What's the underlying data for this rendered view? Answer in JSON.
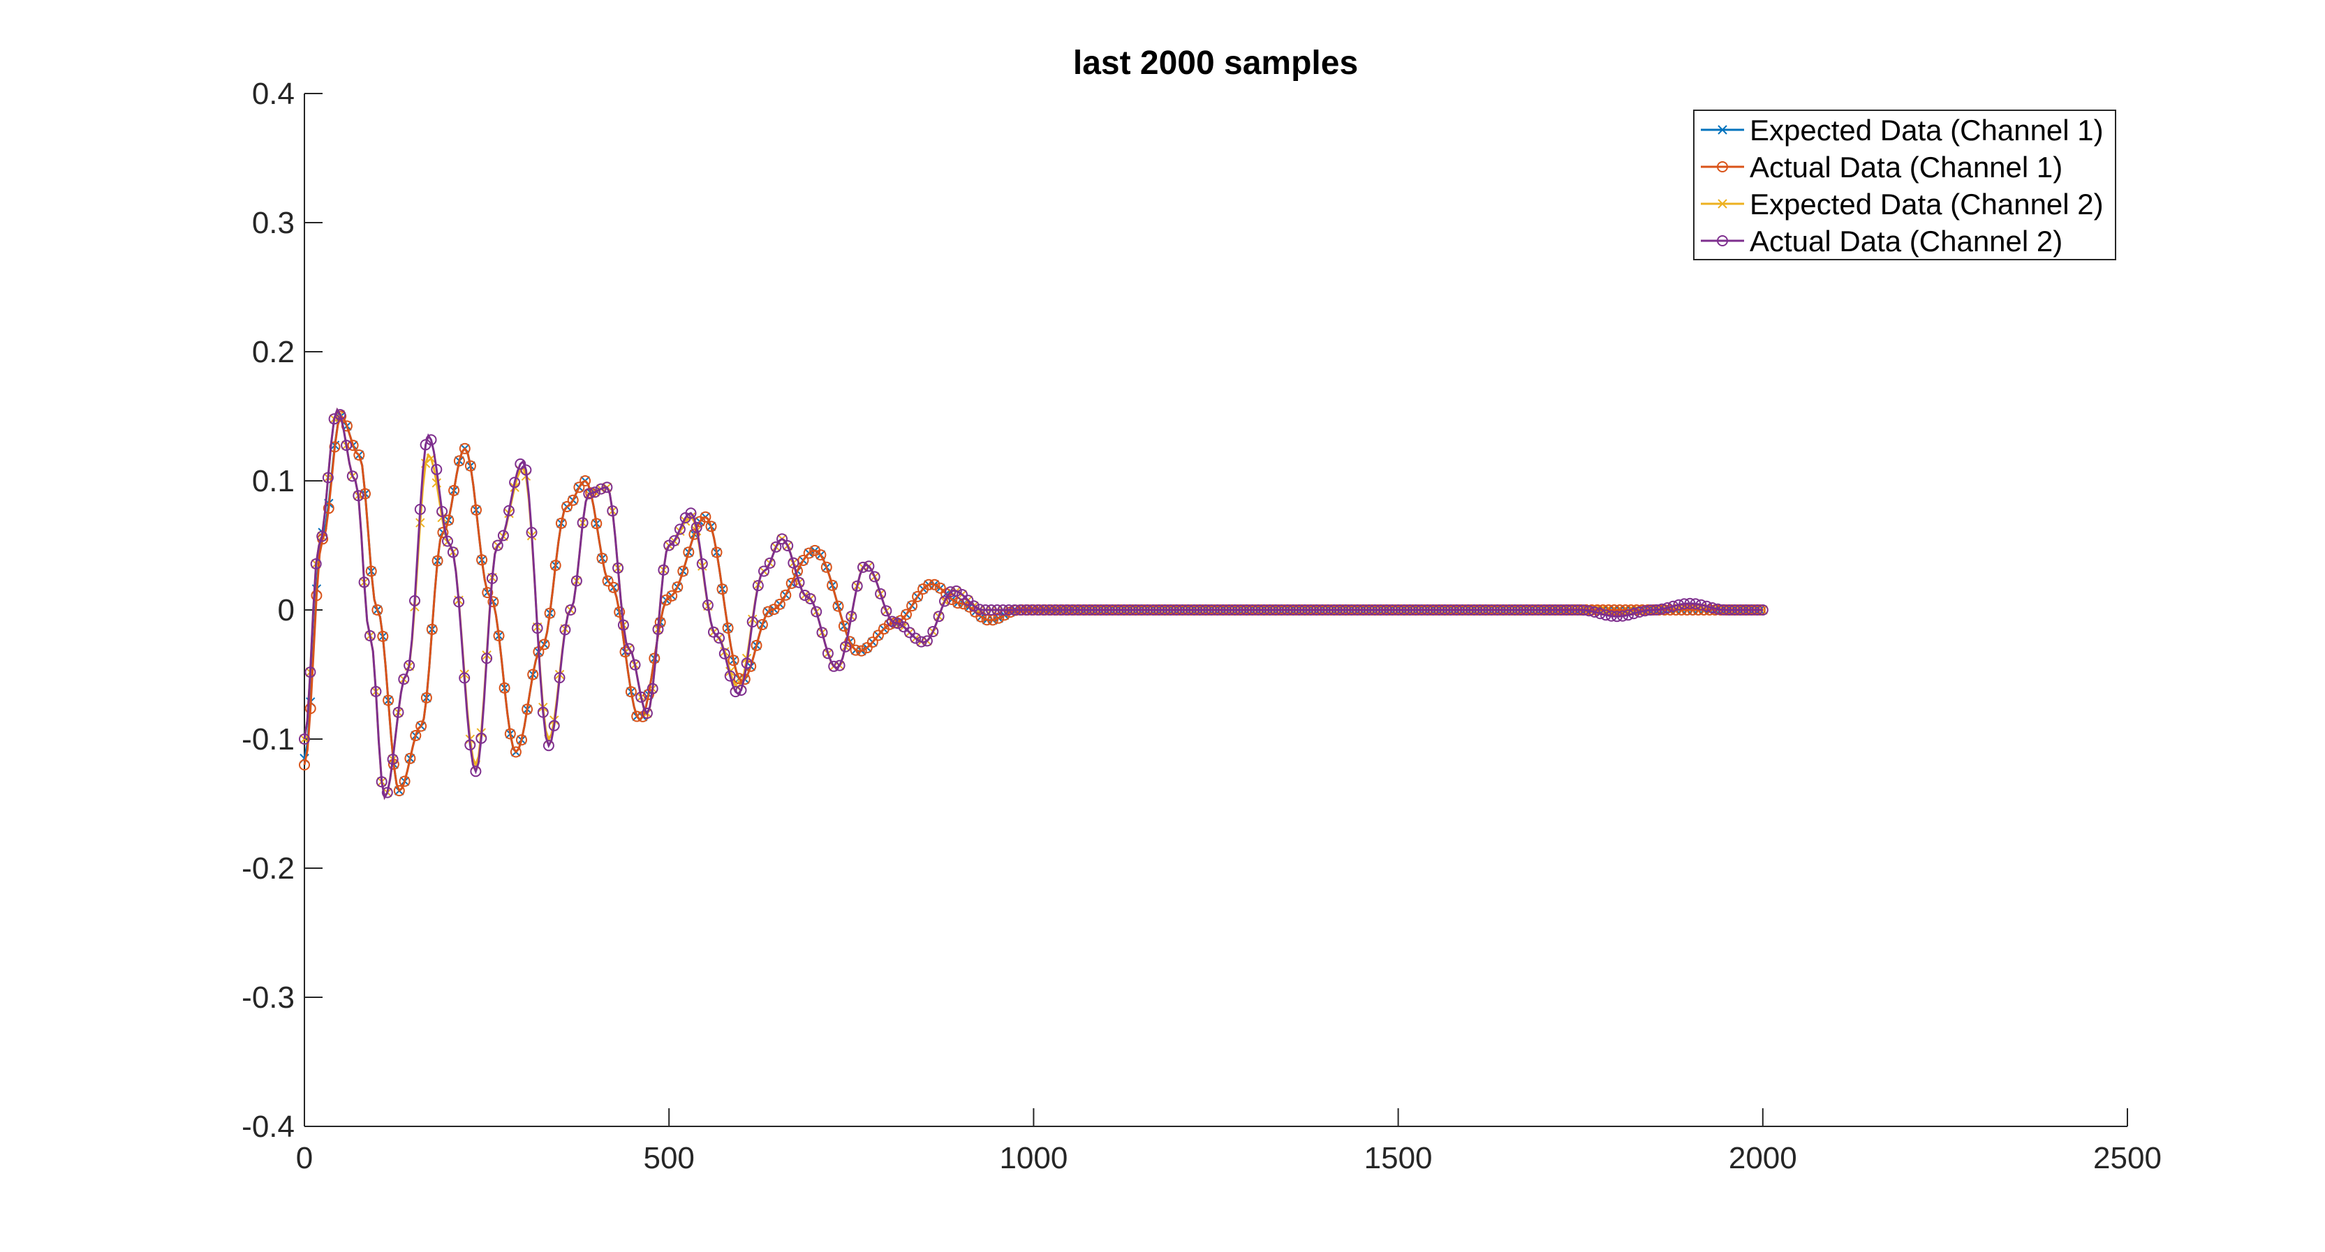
{
  "chart_data": {
    "type": "line",
    "title": "last 2000 samples",
    "xlabel": "",
    "ylabel": "",
    "xlim": [
      0,
      2500
    ],
    "ylim": [
      -0.4,
      0.4
    ],
    "x_ticks": [
      0,
      500,
      1000,
      1500,
      2000,
      2500
    ],
    "x_tick_labels": [
      "0",
      "500",
      "1000",
      "1500",
      "2000",
      "2500"
    ],
    "y_ticks": [
      0.4,
      0.3,
      0.2,
      0.1,
      0,
      -0.1,
      -0.2,
      -0.3,
      -0.4
    ],
    "y_tick_labels": [
      "0.4",
      "0.3",
      "0.2",
      "0.1",
      "0",
      "-0.1",
      "-0.2",
      "-0.3",
      "-0.4"
    ],
    "grid": false,
    "legend_position": "top-right",
    "series": [
      {
        "name": "Expected Data (Channel 1)",
        "color": "#0072BD",
        "marker": "x",
        "x": [
          0,
          25,
          50,
          75,
          100,
          130,
          160,
          190,
          220,
          255,
          290,
          325,
          360,
          385,
          420,
          460,
          500,
          550,
          600,
          640,
          700,
          760,
          810,
          860,
          900,
          940,
          980,
          1100,
          1300,
          1500,
          1700,
          1750,
          1800,
          1850,
          1900,
          1950,
          2000
        ],
        "y": [
          -0.115,
          0.06,
          0.15,
          0.12,
          0,
          -0.14,
          -0.09,
          0.06,
          0.125,
          0.01,
          -0.11,
          -0.03,
          0.08,
          0.1,
          0.02,
          -0.085,
          0.01,
          0.072,
          -0.055,
          0.0,
          0.046,
          -0.032,
          -0.01,
          0.02,
          0.005,
          -0.008,
          0.0,
          0.0,
          0.0,
          0.0,
          0.0,
          0.0,
          0.0,
          0.0,
          0.0,
          0.0,
          0.0
        ]
      },
      {
        "name": "Actual Data (Channel 1)",
        "color": "#D95319",
        "marker": "o",
        "x": [
          0,
          25,
          50,
          75,
          100,
          130,
          160,
          190,
          220,
          255,
          290,
          325,
          360,
          385,
          420,
          460,
          500,
          550,
          600,
          640,
          700,
          760,
          810,
          860,
          900,
          940,
          980,
          1100,
          1300,
          1500,
          1700,
          1750,
          1800,
          1850,
          1900,
          1950,
          2000
        ],
        "y": [
          -0.12,
          0.055,
          0.15,
          0.12,
          0,
          -0.14,
          -0.09,
          0.06,
          0.125,
          0.01,
          -0.11,
          -0.03,
          0.08,
          0.1,
          0.02,
          -0.085,
          0.01,
          0.072,
          -0.055,
          0.0,
          0.046,
          -0.032,
          -0.01,
          0.02,
          0.005,
          -0.008,
          0.0,
          0.0,
          0.0,
          0.0,
          0.0,
          0.0,
          0.0,
          0.0,
          0.0,
          0.0,
          0.0
        ]
      },
      {
        "name": "Expected Data (Channel 2)",
        "color": "#EDB120",
        "marker": "x",
        "x": [
          0,
          20,
          45,
          70,
          90,
          110,
          140,
          170,
          200,
          235,
          265,
          300,
          335,
          365,
          390,
          415,
          445,
          470,
          500,
          530,
          565,
          595,
          630,
          655,
          690,
          730,
          770,
          810,
          850,
          890,
          930,
          970,
          1100,
          1300,
          1500,
          1700,
          1750,
          1800,
          1850,
          1900,
          1950,
          2000
        ],
        "y": [
          -0.1,
          0.05,
          0.155,
          0.1,
          -0.02,
          -0.145,
          -0.05,
          0.12,
          0.05,
          -0.12,
          0.05,
          0.11,
          -0.1,
          0.0,
          0.09,
          0.095,
          -0.03,
          -0.08,
          0.05,
          0.072,
          -0.02,
          -0.06,
          0.03,
          0.055,
          0.01,
          -0.045,
          0.035,
          -0.01,
          -0.025,
          0.015,
          0.0,
          0.0,
          0.0,
          0.0,
          0.0,
          0.0,
          0.001,
          -0.001,
          0.0,
          0.002,
          0.0,
          0.0
        ]
      },
      {
        "name": "Actual Data (Channel 2)",
        "color": "#7E2F8E",
        "marker": "o",
        "x": [
          0,
          20,
          45,
          70,
          90,
          110,
          140,
          170,
          200,
          235,
          265,
          300,
          335,
          365,
          390,
          415,
          445,
          470,
          500,
          530,
          565,
          595,
          630,
          655,
          690,
          730,
          770,
          810,
          850,
          890,
          930,
          970,
          1100,
          1300,
          1500,
          1700,
          1750,
          1800,
          1850,
          1900,
          1950,
          2000
        ],
        "y": [
          -0.1,
          0.05,
          0.155,
          0.1,
          -0.02,
          -0.145,
          -0.05,
          0.135,
          0.05,
          -0.125,
          0.05,
          0.115,
          -0.105,
          0.0,
          0.09,
          0.095,
          -0.03,
          -0.08,
          0.05,
          0.075,
          -0.02,
          -0.065,
          0.03,
          0.055,
          0.01,
          -0.045,
          0.035,
          -0.01,
          -0.025,
          0.015,
          0.0,
          0.0,
          0.0,
          0.0,
          0.0,
          0.0,
          0.0,
          -0.005,
          0.0,
          0.005,
          0.0,
          0.0
        ]
      }
    ]
  }
}
